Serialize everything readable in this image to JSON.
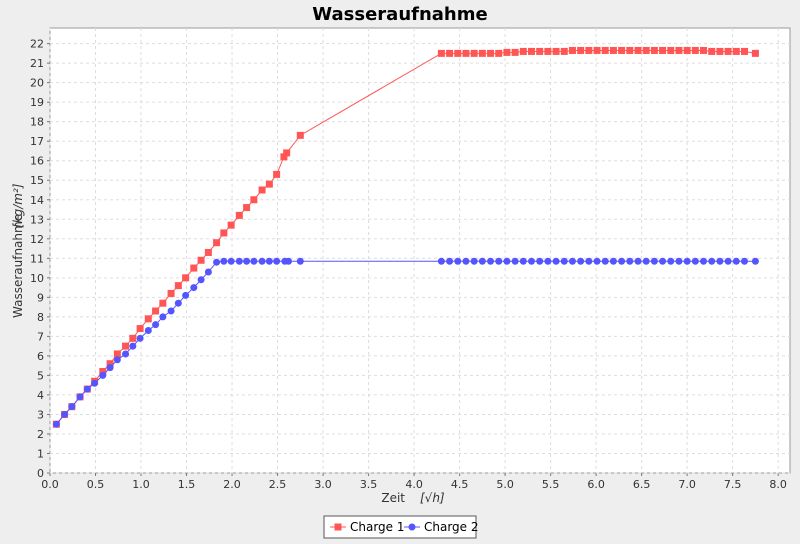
{
  "chart_data": {
    "type": "line",
    "title": "Wasseraufnahme",
    "x_label": "Zeit",
    "x_unit": "[√h]",
    "y_label": "Wasseraufnahme",
    "y_unit": "[kg/m²]",
    "xlim": [
      0,
      8.13
    ],
    "ylim": [
      0,
      22.8
    ],
    "grid": true,
    "legend": "bottom",
    "xticks": [
      {
        "value": 0,
        "label": "0.0"
      },
      {
        "value": 0.5,
        "label": "0.5"
      },
      {
        "value": 1,
        "label": "1.0"
      },
      {
        "value": 1.5,
        "label": "1.5"
      },
      {
        "value": 2,
        "label": "2.0"
      },
      {
        "value": 2.5,
        "label": "2.5"
      },
      {
        "value": 3,
        "label": "3.0"
      },
      {
        "value": 3.5,
        "label": "3.5"
      },
      {
        "value": 4,
        "label": "4.0"
      },
      {
        "value": 4.5,
        "label": "4.5"
      },
      {
        "value": 5,
        "label": "5.0"
      },
      {
        "value": 5.5,
        "label": "5.5"
      },
      {
        "value": 6,
        "label": "6.0"
      },
      {
        "value": 6.5,
        "label": "6.5"
      },
      {
        "value": 7,
        "label": "7.0"
      },
      {
        "value": 7.5,
        "label": "7.5"
      },
      {
        "value": 8,
        "label": "8.0"
      }
    ],
    "yticks": [
      0,
      1,
      2,
      3,
      4,
      5,
      6,
      7,
      8,
      9,
      10,
      11,
      12,
      13,
      14,
      15,
      16,
      17,
      18,
      19,
      20,
      21,
      22
    ],
    "series": [
      {
        "name": "Charge 1",
        "color": "#ff5555",
        "marker": "square",
        "x": [
          0.07,
          0.16,
          0.24,
          0.33,
          0.41,
          0.49,
          0.58,
          0.66,
          0.74,
          0.83,
          0.91,
          0.99,
          1.08,
          1.16,
          1.24,
          1.33,
          1.41,
          1.49,
          1.58,
          1.66,
          1.74,
          1.83,
          1.91,
          1.99,
          2.08,
          2.16,
          2.24,
          2.33,
          2.41,
          2.49,
          2.57,
          2.6,
          2.75,
          4.3,
          4.39,
          4.48,
          4.57,
          4.66,
          4.75,
          4.84,
          4.93,
          5.02,
          5.11,
          5.2,
          5.29,
          5.38,
          5.47,
          5.56,
          5.65,
          5.74,
          5.83,
          5.92,
          6.01,
          6.1,
          6.19,
          6.28,
          6.37,
          6.46,
          6.55,
          6.64,
          6.73,
          6.82,
          6.91,
          7.0,
          7.09,
          7.18,
          7.27,
          7.36,
          7.45,
          7.54,
          7.63,
          7.75
        ],
        "values": [
          2.5,
          3.0,
          3.4,
          3.9,
          4.3,
          4.7,
          5.2,
          5.6,
          6.1,
          6.5,
          6.9,
          7.4,
          7.9,
          8.3,
          8.7,
          9.2,
          9.6,
          10.0,
          10.5,
          10.9,
          11.3,
          11.8,
          12.3,
          12.7,
          13.2,
          13.6,
          14.0,
          14.5,
          14.8,
          15.3,
          16.2,
          16.4,
          17.3,
          21.5,
          21.5,
          21.5,
          21.5,
          21.5,
          21.5,
          21.5,
          21.5,
          21.55,
          21.55,
          21.6,
          21.6,
          21.6,
          21.6,
          21.6,
          21.6,
          21.65,
          21.65,
          21.65,
          21.65,
          21.65,
          21.65,
          21.65,
          21.65,
          21.65,
          21.65,
          21.65,
          21.65,
          21.65,
          21.65,
          21.65,
          21.65,
          21.65,
          21.6,
          21.6,
          21.6,
          21.6,
          21.6,
          21.5
        ]
      },
      {
        "name": "Charge 2",
        "color": "#5555ff",
        "marker": "circle",
        "x": [
          0.07,
          0.16,
          0.24,
          0.33,
          0.41,
          0.49,
          0.58,
          0.66,
          0.74,
          0.83,
          0.91,
          0.99,
          1.08,
          1.16,
          1.24,
          1.33,
          1.41,
          1.49,
          1.58,
          1.66,
          1.74,
          1.83,
          1.91,
          1.99,
          2.08,
          2.16,
          2.24,
          2.33,
          2.41,
          2.49,
          2.58,
          2.62,
          2.75,
          4.3,
          4.39,
          4.48,
          4.57,
          4.66,
          4.75,
          4.84,
          4.93,
          5.02,
          5.11,
          5.2,
          5.29,
          5.38,
          5.47,
          5.56,
          5.65,
          5.74,
          5.83,
          5.92,
          6.01,
          6.1,
          6.19,
          6.28,
          6.37,
          6.46,
          6.55,
          6.64,
          6.73,
          6.82,
          6.91,
          7.0,
          7.09,
          7.18,
          7.27,
          7.36,
          7.45,
          7.54,
          7.63,
          7.75
        ],
        "values": [
          2.5,
          3.0,
          3.4,
          3.9,
          4.3,
          4.6,
          5.0,
          5.4,
          5.8,
          6.1,
          6.5,
          6.9,
          7.3,
          7.6,
          8.0,
          8.3,
          8.7,
          9.1,
          9.5,
          9.9,
          10.3,
          10.8,
          10.85,
          10.85,
          10.85,
          10.85,
          10.85,
          10.85,
          10.85,
          10.85,
          10.85,
          10.85,
          10.85,
          10.85,
          10.85,
          10.85,
          10.85,
          10.85,
          10.85,
          10.85,
          10.85,
          10.85,
          10.85,
          10.85,
          10.85,
          10.85,
          10.85,
          10.85,
          10.85,
          10.85,
          10.85,
          10.85,
          10.85,
          10.85,
          10.85,
          10.85,
          10.85,
          10.85,
          10.85,
          10.85,
          10.85,
          10.85,
          10.85,
          10.85,
          10.85,
          10.85,
          10.85,
          10.85,
          10.85,
          10.85,
          10.85,
          10.85
        ]
      }
    ]
  }
}
